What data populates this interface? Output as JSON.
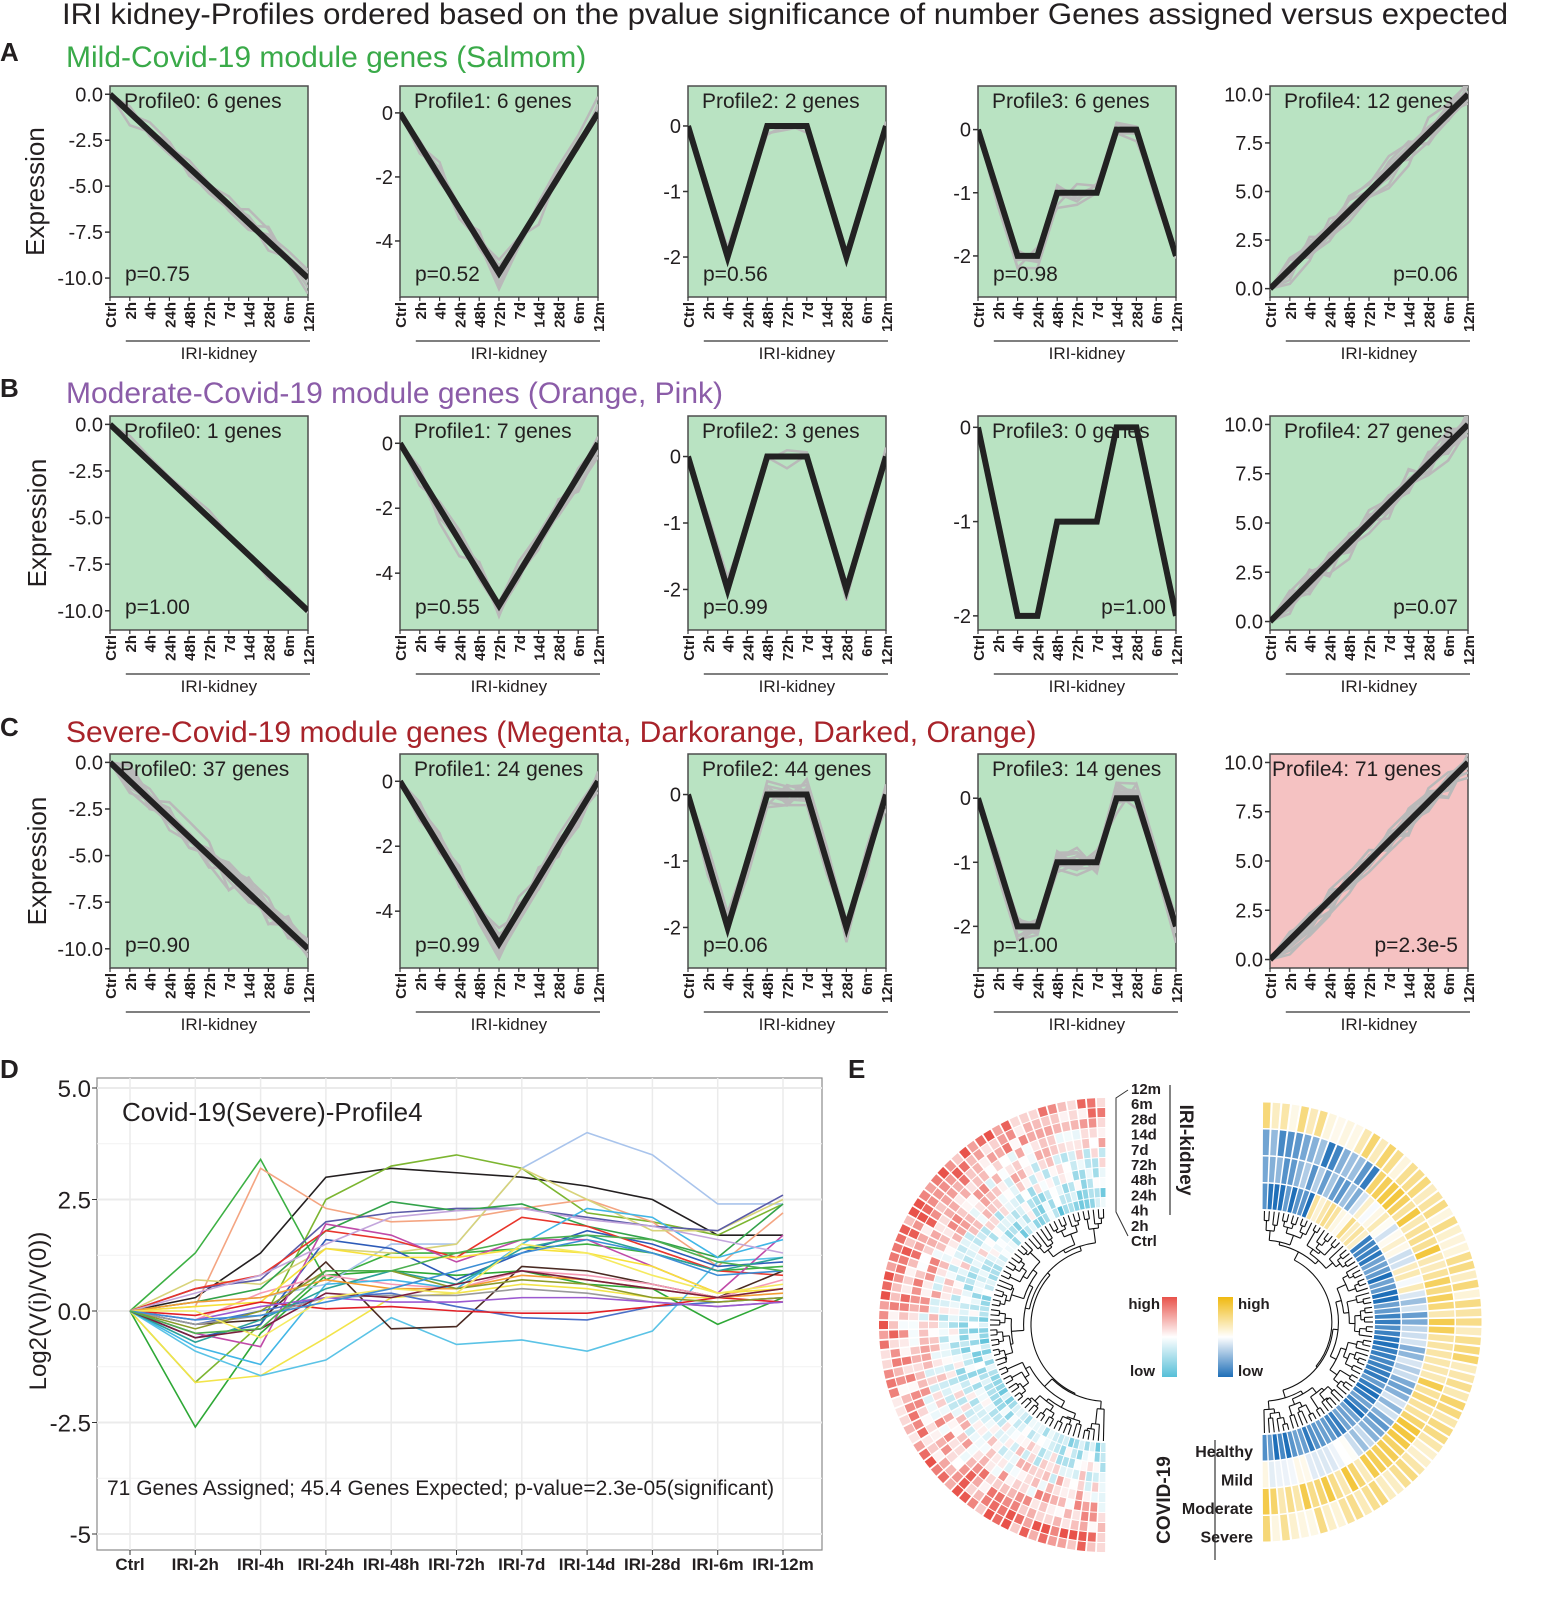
{
  "figure_title": "IRI kidney-Profiles ordered based on the pvalue significance of number Genes assigned versus expected",
  "time_points": [
    "Ctrl",
    "2h",
    "4h",
    "24h",
    "48h",
    "72h",
    "7d",
    "14d",
    "28d",
    "6m",
    "12m"
  ],
  "x_group_label": "IRI-kidney",
  "y_axis_label": "Expression",
  "colors": {
    "green_bg": "#b9e3c2",
    "pink_bg": "#f5c2c2",
    "mild": "#3aaa49",
    "moderate": "#8b5ca8",
    "severe": "#a8232a",
    "profile_line": "#222222",
    "member_line": "#b9b9b9"
  },
  "profiles": {
    "Profile0": {
      "values": [
        0,
        -1,
        -2,
        -3,
        -4,
        -5,
        -6,
        -7,
        -8,
        -9,
        -10
      ],
      "ylim": [
        -11.03,
        0.45
      ],
      "ticks": [
        "0.0",
        "-2.5",
        "-5.0",
        "-7.5",
        "-10.0"
      ],
      "tick_values": [
        0,
        -2.5,
        -5,
        -7.5,
        -10
      ],
      "p_pos": "bottom-left"
    },
    "Profile1": {
      "values": [
        0,
        -1,
        -2,
        -3,
        -4,
        -5,
        -4,
        -3,
        -2,
        -1,
        0
      ],
      "ylim": [
        -5.75,
        0.84
      ],
      "ticks": [
        "0",
        "-2",
        "-4"
      ],
      "tick_values": [
        0,
        -2,
        -4
      ],
      "p_pos": "bottom-left"
    },
    "Profile2": {
      "values": [
        0,
        -1,
        -2,
        -1,
        0,
        0,
        0,
        -1,
        -2,
        -1,
        0
      ],
      "ylim": [
        -2.61,
        0.61
      ],
      "ticks": [
        "0",
        "-1",
        "-2"
      ],
      "tick_values": [
        0,
        -1,
        -2
      ],
      "p_pos": "bottom-left"
    },
    "Profile3": {
      "values": [
        0,
        -1,
        -2,
        -2,
        -1,
        -1,
        -1,
        0,
        0,
        -1,
        -2
      ],
      "ylim": [
        -2.65,
        0.69
      ],
      "ticks": [
        "0",
        "-1",
        "-2"
      ],
      "tick_values": [
        0,
        -1,
        -2
      ],
      "p_pos": "bottom-left"
    },
    "Profile4": {
      "values": [
        0,
        1,
        2,
        3,
        4,
        5,
        6,
        7,
        8,
        9,
        10
      ],
      "ylim": [
        -0.43,
        10.43
      ],
      "ticks": [
        "0.0",
        "2.5",
        "5.0",
        "7.5",
        "10.0"
      ],
      "tick_values": [
        0,
        2.5,
        5,
        7.5,
        10
      ],
      "p_pos": "bottom-right"
    }
  },
  "rows": [
    {
      "letter": "A",
      "header": "Mild-Covid-19 module genes (Salmom)",
      "color_key": "mild",
      "panels": [
        {
          "profile": "Profile0",
          "title": "Profile0: 6 genes",
          "genes": 6,
          "p": "p=0.75",
          "significant": false
        },
        {
          "profile": "Profile1",
          "title": "Profile1: 6 genes",
          "genes": 6,
          "p": "p=0.52",
          "significant": false
        },
        {
          "profile": "Profile2",
          "title": "Profile2: 2 genes",
          "genes": 2,
          "p": "p=0.56",
          "significant": false
        },
        {
          "profile": "Profile3",
          "title": "Profile3: 6 genes",
          "genes": 6,
          "p": "p=0.98",
          "significant": false
        },
        {
          "profile": "Profile4",
          "title": "Profile4: 12 genes",
          "genes": 12,
          "p": "p=0.06",
          "significant": false
        }
      ]
    },
    {
      "letter": "B",
      "header": "Moderate-Covid-19 module genes (Orange, Pink)",
      "color_key": "moderate",
      "panels": [
        {
          "profile": "Profile0",
          "title": "Profile0: 1 genes",
          "genes": 1,
          "p": "p=1.00",
          "significant": false
        },
        {
          "profile": "Profile1",
          "title": "Profile1: 7 genes",
          "genes": 7,
          "p": "p=0.55",
          "significant": false
        },
        {
          "profile": "Profile2",
          "title": "Profile2: 3 genes",
          "genes": 3,
          "p": "p=0.99",
          "significant": false
        },
        {
          "profile": "Profile3",
          "title": "Profile3: 0 genes",
          "genes": 0,
          "p": "p=1.00",
          "significant": false,
          "ylim": [
            -2.15,
            0.12
          ],
          "p_pos": "bottom-right"
        },
        {
          "profile": "Profile4",
          "title": "Profile4: 27 genes",
          "genes": 27,
          "p": "p=0.07",
          "significant": false
        }
      ]
    },
    {
      "letter": "C",
      "header": "Severe-Covid-19 module genes (Megenta, Darkorange, Darked, Orange)",
      "color_key": "severe",
      "panels": [
        {
          "profile": "Profile0",
          "title": "Profile0: 37 genes",
          "genes": 37,
          "p": "p=0.90",
          "significant": false
        },
        {
          "profile": "Profile1",
          "title": "Profile1: 24 genes",
          "genes": 24,
          "p": "p=0.99",
          "significant": false
        },
        {
          "profile": "Profile2",
          "title": "Profile2: 44 genes",
          "genes": 44,
          "p": "p=0.06",
          "significant": false
        },
        {
          "profile": "Profile3",
          "title": "Profile3: 14 genes",
          "genes": 14,
          "p": "p=1.00",
          "significant": false
        },
        {
          "profile": "Profile4",
          "title": "Profile4: 71 genes",
          "genes": 71,
          "p": "p=2.3e-5",
          "significant": true
        }
      ]
    }
  ],
  "chart_data": [
    {
      "type": "line",
      "panel": "D",
      "title": "Covid-19(Severe)-Profile4",
      "ylabel": "Log2(V(i)/V(0))",
      "xlabel": "",
      "categories": [
        "Ctrl",
        "IRI-2h",
        "IRI-4h",
        "IRI-24h",
        "IRI-48h",
        "IRI-72h",
        "IRI-7d",
        "IRI-14d",
        "IRI-28d",
        "IRI-6m",
        "IRI-12m"
      ],
      "ylim": [
        -5.2,
        5.2
      ],
      "yticks": [
        "5.0",
        "2.5",
        "0.0",
        "-2.5",
        "-5"
      ],
      "ytick_values": [
        5,
        2.5,
        0,
        -2.5,
        -5
      ],
      "grid": true,
      "annotation": "71 Genes Assigned; 45.4 Genes Expected; p-value=2.3e-05(significant)",
      "series": [
        {
          "color": "#231f20",
          "values": [
            0,
            0.3,
            1.3,
            3.0,
            3.2,
            3.1,
            3.0,
            2.8,
            2.5,
            1.7,
            1.7
          ]
        },
        {
          "color": "#3cb043",
          "values": [
            0,
            1.3,
            3.4,
            0.7,
            1.3,
            1.3,
            1.4,
            1.5,
            1.3,
            0.9,
            1.0
          ]
        },
        {
          "color": "#2ea836",
          "values": [
            0,
            -2.6,
            -0.5,
            0.8,
            0.9,
            0.8,
            0.9,
            0.6,
            0.5,
            -0.3,
            0.3
          ]
        },
        {
          "color": "#7cb530",
          "values": [
            0,
            -1.6,
            -0.3,
            2.5,
            3.25,
            3.5,
            3.2,
            2.2,
            2.0,
            1.7,
            2.4
          ]
        },
        {
          "color": "#f4a582",
          "values": [
            0,
            0.1,
            3.2,
            2.3,
            2.0,
            2.05,
            2.3,
            2.5,
            2.0,
            1.0,
            2.2
          ]
        },
        {
          "color": "#a9c4ec",
          "values": [
            0,
            0.2,
            0.3,
            0.6,
            1.5,
            1.5,
            3.2,
            4.0,
            3.5,
            2.4,
            2.4
          ]
        },
        {
          "color": "#d8d37a",
          "values": [
            0,
            0.7,
            0.6,
            1.4,
            1.3,
            1.5,
            3.2,
            2.5,
            1.8,
            1.8,
            2.5
          ]
        },
        {
          "color": "#f2e44a",
          "values": [
            0,
            -1.6,
            -1.45,
            -0.6,
            0.3,
            0.4,
            0.6,
            0.5,
            0.3,
            0.3,
            0.5
          ]
        },
        {
          "color": "#5bc3e6",
          "values": [
            0,
            -0.9,
            -1.45,
            -1.1,
            -0.15,
            -0.75,
            -0.65,
            -0.9,
            -0.45,
            1.1,
            1.2
          ]
        },
        {
          "color": "#2d5bb8",
          "values": [
            0,
            -0.6,
            -0.3,
            1.6,
            1.4,
            0.7,
            1.3,
            1.8,
            1.5,
            1.0,
            1.1
          ]
        },
        {
          "color": "#5b5ba8",
          "values": [
            0,
            0.5,
            0.7,
            2.0,
            2.2,
            2.3,
            2.3,
            2.1,
            1.9,
            1.8,
            2.6
          ]
        },
        {
          "color": "#33a34a",
          "values": [
            0,
            0.2,
            0.5,
            1.8,
            2.45,
            2.25,
            2.4,
            1.9,
            1.6,
            1.2,
            2.4
          ]
        },
        {
          "color": "#e8352b",
          "values": [
            0,
            0.5,
            0.8,
            1.8,
            1.6,
            1.2,
            2.1,
            1.9,
            1.4,
            0.9,
            0.8
          ]
        },
        {
          "color": "#4a2a22",
          "values": [
            0,
            -0.3,
            -0.2,
            1.1,
            -0.4,
            -0.35,
            1.0,
            0.9,
            0.6,
            0.3,
            0.9
          ]
        },
        {
          "color": "#c04aa8",
          "values": [
            0,
            -0.5,
            -0.8,
            1.95,
            1.7,
            1.1,
            1.6,
            1.6,
            1.0,
            0.4,
            1.7
          ]
        },
        {
          "color": "#f59ab5",
          "values": [
            0,
            -0.2,
            0.4,
            0.8,
            0.6,
            0.5,
            0.9,
            0.8,
            0.6,
            0.3,
            0.7
          ]
        },
        {
          "color": "#41b6e6",
          "values": [
            0,
            -0.8,
            -1.2,
            0.6,
            0.7,
            0.5,
            1.5,
            2.3,
            2.1,
            1.2,
            1.6
          ]
        },
        {
          "color": "#c3a6dc",
          "values": [
            0,
            0.4,
            0.8,
            1.5,
            2.1,
            2.25,
            2.3,
            2.05,
            1.9,
            1.6,
            1.3
          ]
        },
        {
          "color": "#f7e13a",
          "values": [
            0,
            0.1,
            0.2,
            1.4,
            1.2,
            1.2,
            1.4,
            1.3,
            1.0,
            0.4,
            0.5
          ]
        },
        {
          "color": "#4b70c8",
          "values": [
            0,
            -0.3,
            0,
            0.3,
            0.4,
            0.1,
            -0.15,
            -0.2,
            0.1,
            0.2,
            0.3
          ]
        },
        {
          "color": "#e21f26",
          "values": [
            0,
            -0.1,
            0.2,
            0.05,
            0.1,
            0.0,
            -0.05,
            -0.05,
            0.1,
            0.3,
            0.2
          ]
        },
        {
          "color": "#2aa198",
          "values": [
            0,
            -0.7,
            -0.2,
            0.5,
            0.9,
            0.6,
            1.4,
            1.7,
            1.3,
            0.9,
            1.2
          ]
        },
        {
          "color": "#f39c33",
          "values": [
            0,
            0.2,
            0.3,
            0.7,
            0.5,
            0.5,
            0.8,
            0.7,
            0.5,
            0.3,
            0.4
          ]
        },
        {
          "color": "#9a9a9a",
          "values": [
            0,
            -0.3,
            -0.1,
            0.3,
            0.35,
            0.35,
            0.5,
            0.4,
            0.2,
            0.1,
            0.2
          ]
        },
        {
          "color": "#8c9a2a",
          "values": [
            0,
            -0.4,
            0.0,
            0.9,
            0.9,
            0.5,
            0.7,
            0.6,
            0.3,
            0.2,
            0.3
          ]
        },
        {
          "color": "#7a1f3d",
          "values": [
            0,
            -0.6,
            -0.4,
            0.4,
            0.3,
            0.6,
            0.9,
            0.7,
            0.5,
            0.3,
            0.5
          ]
        },
        {
          "color": "#9b59d0",
          "values": [
            0,
            -0.2,
            0.1,
            0.3,
            0.2,
            0.2,
            0.3,
            0.3,
            0.2,
            0.1,
            0.2
          ]
        },
        {
          "color": "#f5ea60",
          "values": [
            0,
            0.0,
            -0.6,
            0.3,
            0.5,
            0.4,
            1.5,
            1.3,
            0.8,
            0.4,
            0.6
          ]
        },
        {
          "color": "#3d8fd6",
          "values": [
            0,
            -0.2,
            -0.1,
            0.2,
            0.5,
            0.9,
            1.3,
            1.6,
            1.3,
            0.8,
            0.9
          ]
        },
        {
          "color": "#4caf50",
          "values": [
            0,
            -0.5,
            -0.4,
            0.9,
            0.9,
            1.3,
            1.6,
            1.7,
            1.6,
            1.1,
            0.9
          ]
        }
      ]
    },
    {
      "type": "heatmap",
      "panel": "E",
      "layout": "circular",
      "left_ring": {
        "group_label": "IRI-kidney",
        "rows": [
          "12m",
          "6m",
          "28d",
          "14d",
          "7d",
          "72h",
          "48h",
          "24h",
          "4h",
          "2h",
          "Ctrl"
        ],
        "legend_high": "high",
        "legend_low": "low",
        "high_color": "#e8524a",
        "mid_color": "#ffffff",
        "low_color": "#56bfd8"
      },
      "right_ring": {
        "group_label": "COVID-19",
        "rows": [
          "Healthy",
          "Mild",
          "Moderate",
          "Severe"
        ],
        "legend_high": "high",
        "legend_low": "low",
        "high_color": "#f0b90f",
        "mid_color": "#ffffff",
        "low_color": "#1f6fb8"
      },
      "genes": 71
    }
  ]
}
